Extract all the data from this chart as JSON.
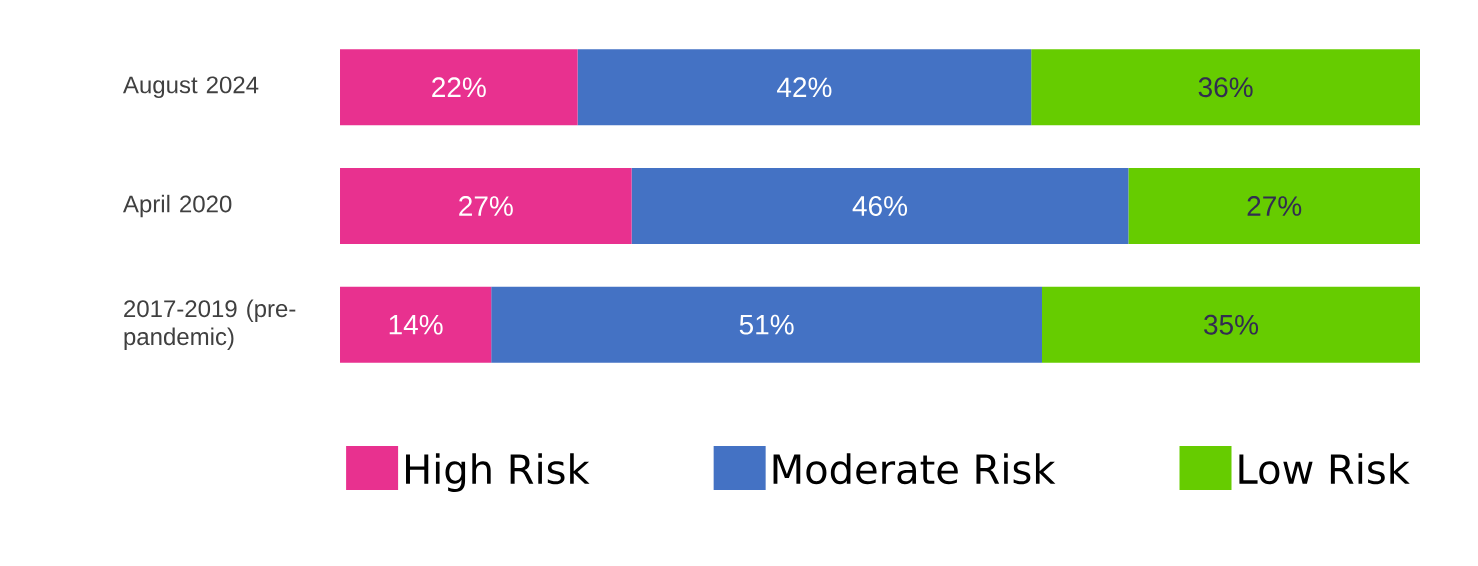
{
  "chart_data": {
    "type": "bar",
    "orientation": "horizontal",
    "stacked": true,
    "categories": [
      "August 2024",
      "April 2020",
      "2017-2019 (pre-pandemic)"
    ],
    "series": [
      {
        "name": "High Risk",
        "color": "#e8318f",
        "values": [
          22,
          27,
          14
        ],
        "value_labels": [
          "22%",
          "27%",
          "14%"
        ]
      },
      {
        "name": "Moderate Risk",
        "color": "#4472c4",
        "values": [
          42,
          46,
          51
        ],
        "value_labels": [
          "42%",
          "46%",
          "51%"
        ]
      },
      {
        "name": "Low Risk",
        "color": "#66cc00",
        "values": [
          36,
          27,
          35
        ],
        "value_labels": [
          "36%",
          "27%",
          "35%"
        ]
      }
    ],
    "xlim": [
      0,
      100
    ],
    "tick_labels": "y",
    "legend": "bottom"
  }
}
